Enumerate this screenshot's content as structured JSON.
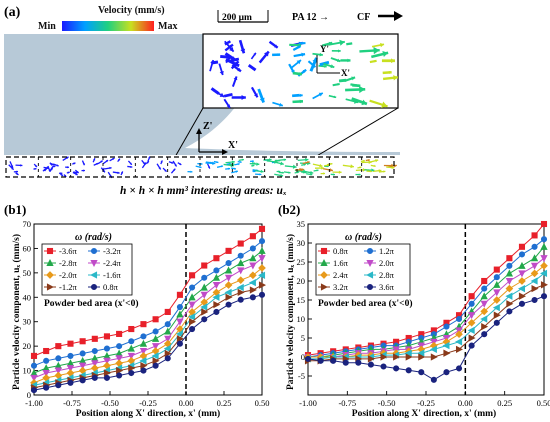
{
  "panel_a": {
    "label": "(a)",
    "colorbar": {
      "title": "Velocity (mm/s)",
      "min_label": "Min",
      "max_label": "Max",
      "colors": [
        "#1a1aff",
        "#00a0ff",
        "#20d080",
        "#c8e020",
        "#ff2020"
      ]
    },
    "scalebar_label": "200 μm",
    "pa12_label": "PA 12 →",
    "cf_label": "CF",
    "axis_x_label": "X'",
    "axis_z_label": "Z'",
    "inset_axis_x_label": "X'",
    "inset_axis_y_label": "Y'",
    "caption": "h × h × h mm³ interesting areas: uₓ",
    "fiber_color": "#b7c9d7"
  },
  "chart_data": [
    {
      "type": "line",
      "panel_label": "(b1)",
      "legend_title": "ω (rad/s)",
      "annotation": "Powder bed area (x'<0)",
      "xlabel": "Position along X' direction, x' (mm)",
      "ylabel": "Particle velocity component, uₓ (mm/s)",
      "xlim": [
        -1.0,
        0.5
      ],
      "ylim": [
        0,
        70
      ],
      "xticks": [
        "-1.00",
        "-0.75",
        "-0.50",
        "-0.25",
        "0.00",
        "0.25",
        "0.50"
      ],
      "yticks": [
        "0",
        "10",
        "20",
        "30",
        "40",
        "50",
        "60",
        "70"
      ],
      "vline_x": 0.0,
      "x": [
        -1.0,
        -0.92,
        -0.84,
        -0.76,
        -0.68,
        -0.6,
        -0.52,
        -0.44,
        -0.36,
        -0.28,
        -0.2,
        -0.12,
        -0.04,
        0.04,
        0.12,
        0.2,
        0.28,
        0.36,
        0.44,
        0.5
      ],
      "series": [
        {
          "name": "-3.6π",
          "color": "#e8202a",
          "marker": "square",
          "values": [
            16,
            18,
            20,
            21,
            22,
            23,
            24,
            25,
            27,
            29,
            31,
            34,
            41,
            49,
            53,
            56,
            59,
            62,
            65,
            68
          ]
        },
        {
          "name": "-3.2π",
          "color": "#1f6fd1",
          "marker": "circle",
          "values": [
            12,
            14,
            15,
            16,
            17,
            18,
            19,
            20,
            22,
            24,
            26,
            29,
            36,
            44,
            48,
            51,
            54,
            57,
            60,
            63
          ]
        },
        {
          "name": "-2.8π",
          "color": "#22a84a",
          "marker": "triangle-up",
          "values": [
            9,
            11,
            12,
            13,
            14,
            15,
            16,
            17,
            19,
            21,
            23,
            26,
            33,
            40,
            44,
            48,
            51,
            54,
            56,
            59
          ]
        },
        {
          "name": "-2.4π",
          "color": "#c04ac8",
          "marker": "triangle-down",
          "values": [
            7,
            9,
            10,
            11,
            12,
            13,
            14,
            15,
            16,
            18,
            20,
            23,
            30,
            37,
            41,
            45,
            48,
            51,
            53,
            56
          ]
        },
        {
          "name": "-2.0π",
          "color": "#e89a1a",
          "marker": "diamond",
          "values": [
            5,
            7,
            8,
            9,
            10,
            11,
            12,
            13,
            14,
            16,
            18,
            21,
            27,
            34,
            38,
            42,
            45,
            47,
            49,
            52
          ]
        },
        {
          "name": "-1.6π",
          "color": "#2ab8c8",
          "marker": "triangle-left",
          "values": [
            4,
            5,
            6,
            7,
            8,
            9,
            10,
            11,
            12,
            14,
            16,
            19,
            25,
            32,
            36,
            40,
            42,
            44,
            46,
            49
          ]
        },
        {
          "name": "-1.2π",
          "color": "#8a3a1a",
          "marker": "triangle-right",
          "values": [
            3,
            4,
            5,
            6,
            7,
            8,
            9,
            10,
            11,
            12,
            14,
            17,
            23,
            30,
            34,
            37,
            40,
            42,
            43,
            45
          ]
        },
        {
          "name": "0.8π",
          "color": "#1a237e",
          "marker": "circle",
          "values": [
            2,
            3,
            4,
            5,
            6,
            7,
            7,
            8,
            9,
            10,
            12,
            15,
            21,
            27,
            31,
            34,
            37,
            39,
            40,
            41
          ]
        }
      ]
    },
    {
      "type": "line",
      "panel_label": "(b2)",
      "legend_title": "ω (rad/s)",
      "annotation": "Powder bed area (x'<0)",
      "xlabel": "Position along X' direction, x' (mm)",
      "ylabel": "Particle velocity component, uₓ (mm/s)",
      "xlim": [
        -1.0,
        0.5
      ],
      "ylim": [
        -10,
        35
      ],
      "xticks": [
        "-1.00",
        "-0.75",
        "-0.50",
        "-0.25",
        "0.00",
        "0.25",
        "0.50"
      ],
      "yticks": [
        "-5",
        "0",
        "5",
        "10",
        "15",
        "20",
        "25",
        "30",
        "35"
      ],
      "vline_x": 0.0,
      "x": [
        -1.0,
        -0.92,
        -0.84,
        -0.76,
        -0.68,
        -0.6,
        -0.52,
        -0.44,
        -0.36,
        -0.28,
        -0.2,
        -0.12,
        -0.04,
        0.04,
        0.12,
        0.2,
        0.28,
        0.36,
        0.44,
        0.5
      ],
      "series": [
        {
          "name": "0.8π",
          "color": "#e8202a",
          "marker": "square",
          "values": [
            0.5,
            1,
            1.5,
            2,
            2.5,
            3,
            3.5,
            4,
            5,
            6,
            7,
            9,
            11,
            16,
            20,
            23,
            26,
            29,
            32,
            35
          ]
        },
        {
          "name": "1.2π",
          "color": "#1f6fd1",
          "marker": "circle",
          "values": [
            0,
            0.5,
            1,
            1.5,
            2,
            2.5,
            3,
            3,
            4,
            5,
            6,
            8,
            10,
            14,
            18,
            21,
            24,
            27,
            29,
            31
          ]
        },
        {
          "name": "1.6π",
          "color": "#22a84a",
          "marker": "triangle-up",
          "values": [
            0,
            0,
            0.5,
            1,
            1.5,
            2,
            2,
            2.5,
            3,
            4,
            5,
            6,
            8,
            12,
            16,
            19,
            22,
            24,
            26,
            29
          ]
        },
        {
          "name": "2.0π",
          "color": "#c04ac8",
          "marker": "triangle-down",
          "values": [
            0,
            0,
            0,
            0.5,
            1,
            1,
            1.5,
            2,
            2,
            3,
            4,
            5,
            7,
            11,
            14,
            17,
            20,
            22,
            24,
            26
          ]
        },
        {
          "name": "2.4π",
          "color": "#e89a1a",
          "marker": "diamond",
          "values": [
            0,
            0,
            0,
            0,
            0.5,
            0.5,
            1,
            1,
            1.5,
            2,
            3,
            4,
            6,
            9,
            12,
            15,
            18,
            20,
            22,
            24
          ]
        },
        {
          "name": "2.8π",
          "color": "#2ab8c8",
          "marker": "triangle-left",
          "values": [
            -0.5,
            -0.5,
            0,
            0,
            0,
            0,
            0.5,
            0.5,
            1,
            1,
            2,
            3,
            4,
            7,
            10,
            13,
            16,
            18,
            20,
            22
          ]
        },
        {
          "name": "3.2π",
          "color": "#8a3a1a",
          "marker": "triangle-right",
          "values": [
            -1,
            -1,
            -0.5,
            -0.5,
            -0.5,
            -0.5,
            0,
            0,
            0,
            0,
            0,
            1,
            2,
            5,
            8,
            11,
            14,
            16,
            18,
            19
          ]
        },
        {
          "name": "3.6π",
          "color": "#1a237e",
          "marker": "circle",
          "values": [
            -0.5,
            -1,
            -1,
            -1.5,
            -1.5,
            -2,
            -2.5,
            -3,
            -3.5,
            -4,
            -6,
            -4,
            -3,
            3,
            6,
            9,
            12,
            14,
            15,
            16
          ]
        }
      ]
    }
  ]
}
